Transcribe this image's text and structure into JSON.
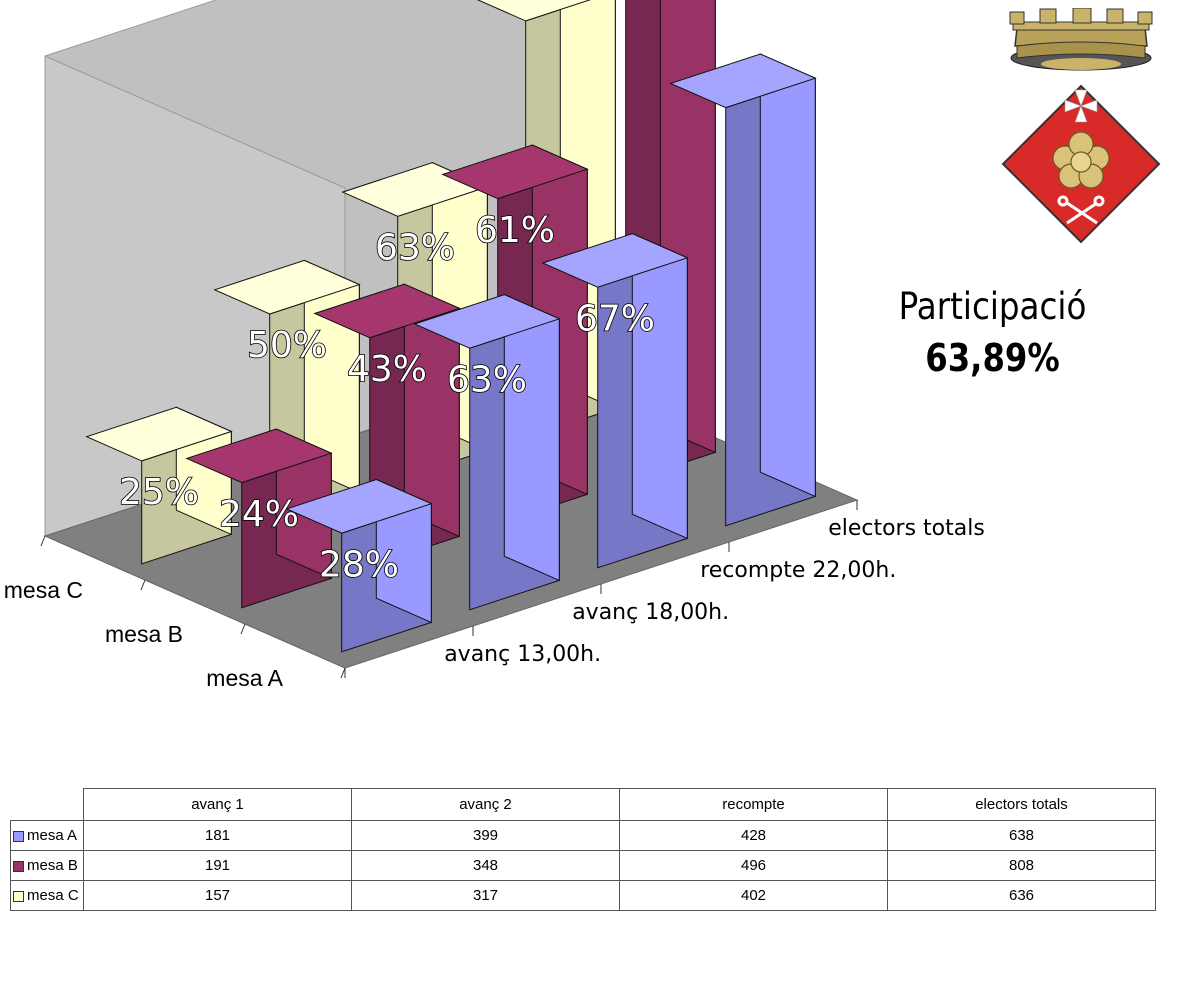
{
  "chart_data": {
    "type": "bar",
    "categories": [
      "avanç 13,00h.",
      "avanç 18,00h.",
      "recompte 22,00h.",
      "electors totals"
    ],
    "series": [
      {
        "name": "mesa A",
        "values": [
          181,
          399,
          428,
          638
        ],
        "labels": [
          "28%",
          "63%",
          "67%",
          ""
        ]
      },
      {
        "name": "mesa B",
        "values": [
          191,
          348,
          496,
          808
        ],
        "labels": [
          "24%",
          "43%",
          "61%",
          ""
        ]
      },
      {
        "name": "mesa C",
        "values": [
          157,
          317,
          402,
          636
        ],
        "labels": [
          "25%",
          "50%",
          "63%",
          ""
        ]
      }
    ],
    "ylim": [
      0,
      900
    ],
    "grid": false,
    "colors": {
      "mesa A": "#9999ff",
      "mesa B": "#993366",
      "mesa C": "#ffffcc",
      "wall": "#c0c0c0",
      "floor": "#808080"
    }
  },
  "participation": {
    "title": "Participació",
    "value": "63,89%"
  },
  "table": {
    "headers": [
      "avanç 1",
      "avanç 2",
      "recompte",
      "electors totals"
    ],
    "rows": [
      {
        "label": "mesa A",
        "color": "#9999ff",
        "values": [
          "181",
          "399",
          "428",
          "638"
        ]
      },
      {
        "label": "mesa B",
        "color": "#993366",
        "values": [
          "191",
          "348",
          "496",
          "808"
        ]
      },
      {
        "label": "mesa C",
        "color": "#ffffcc",
        "values": [
          "157",
          "317",
          "402",
          "636"
        ]
      }
    ]
  },
  "crest": {
    "icon": "municipal-coat-of-arms-icon"
  }
}
